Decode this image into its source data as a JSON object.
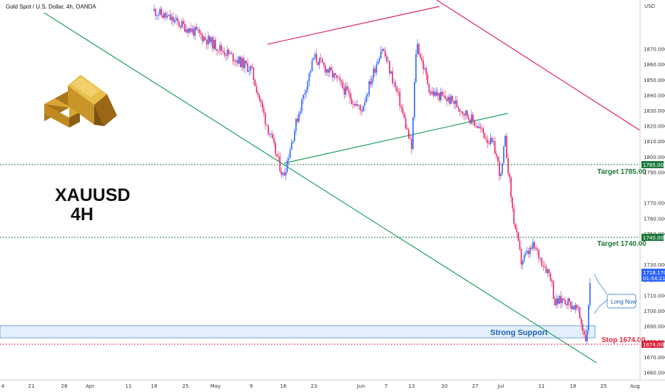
{
  "header": {
    "instrument": "Gold Spot / U.S. Dollar, 4h, OANDA"
  },
  "annotations": {
    "symbol": "XAUUSD",
    "timeframe": "4H",
    "target_upper": "Target 1785.00",
    "target_lower": "Target 1740.00",
    "stop": "Stop 1674.00",
    "support_zone": "Strong Support",
    "callout": "Long Now"
  },
  "price_scale": {
    "currency": "USD",
    "ticks": [
      "1870.000",
      "1860.000",
      "1850.000",
      "1840.000",
      "1830.000",
      "1820.000",
      "1810.000",
      "1800.000",
      "1790.000",
      "1770.000",
      "1760.000",
      "1750.000",
      "1730.000",
      "1720.000",
      "1710.000",
      "1700.000",
      "1690.000",
      "1680.000",
      "1670.000",
      "1660.000"
    ],
    "tags": {
      "target_upper": "1785.000",
      "target_lower": "1740.000",
      "stop": "1674.000",
      "last_price": "1718.170",
      "countdown": "01:54:21"
    }
  },
  "time_axis": {
    "labels": [
      "4",
      "21",
      "28",
      "Apr",
      "11",
      "18",
      "25",
      "May",
      "9",
      "16",
      "23",
      "Jun",
      "7",
      "13",
      "20",
      "27",
      "Jul",
      "11",
      "18",
      "25",
      "Aug"
    ]
  },
  "colors": {
    "up": "#2962ff",
    "down": "#e91e63",
    "green_line": "#1fa060",
    "red_line": "#e0245e",
    "target_green": "#1b7a3a",
    "stop_red": "#e0223c",
    "support_fill": "#e3f0fb",
    "support_border": "#4a90d9",
    "gold": "#c8961e"
  },
  "chart_data": {
    "type": "candlestick",
    "title": "Gold Spot / U.S. Dollar, 4h, OANDA",
    "xlabel": "",
    "ylabel": "USD",
    "ylim": [
      1653,
      1895
    ],
    "price_path": [
      {
        "date": "Apr 18",
        "price": 1895
      },
      {
        "date": "Apr 28",
        "price": 1880
      },
      {
        "date": "May 4",
        "price": 1868
      },
      {
        "date": "May 9",
        "price": 1857
      },
      {
        "date": "May 12",
        "price": 1825
      },
      {
        "date": "May 16",
        "price": 1787
      },
      {
        "date": "May 19",
        "price": 1823
      },
      {
        "date": "May 23",
        "price": 1865
      },
      {
        "date": "May 27",
        "price": 1852
      },
      {
        "date": "Jun 1",
        "price": 1830
      },
      {
        "date": "Jun 6",
        "price": 1872
      },
      {
        "date": "Jun 10",
        "price": 1838
      },
      {
        "date": "Jun 13",
        "price": 1805
      },
      {
        "date": "Jun 14",
        "price": 1875
      },
      {
        "date": "Jun 17",
        "price": 1842
      },
      {
        "date": "Jun 22",
        "price": 1836
      },
      {
        "date": "Jun 27",
        "price": 1822
      },
      {
        "date": "Jun 30",
        "price": 1806
      },
      {
        "date": "Jul 1",
        "price": 1786
      },
      {
        "date": "Jul 2",
        "price": 1812
      },
      {
        "date": "Jul 4",
        "price": 1762
      },
      {
        "date": "Jul 6",
        "price": 1732
      },
      {
        "date": "Jul 9",
        "price": 1742
      },
      {
        "date": "Jul 13",
        "price": 1723
      },
      {
        "date": "Jul 14",
        "price": 1705
      },
      {
        "date": "Jul 16",
        "price": 1708
      },
      {
        "date": "Jul 19",
        "price": 1701
      },
      {
        "date": "Jul 21",
        "price": 1681
      },
      {
        "date": "Jul 22",
        "price": 1718.17
      }
    ],
    "horizontal_levels": [
      {
        "name": "Target 1785.00",
        "value": 1785
      },
      {
        "name": "Target 1740.00",
        "value": 1740
      },
      {
        "name": "Stop 1674.00",
        "value": 1674
      }
    ],
    "support_zone": {
      "name": "Strong Support",
      "from": 1677,
      "to": 1685
    },
    "trendlines": [
      {
        "color": "green",
        "from": {
          "date": "Mar 4",
          "price": 1895
        },
        "to": {
          "date": "Jul 24",
          "price": 1665
        }
      },
      {
        "color": "green",
        "from": {
          "date": "May 16",
          "price": 1785
        },
        "to": {
          "date": "Jul 2",
          "price": 1816
        }
      },
      {
        "color": "red",
        "from": {
          "date": "May 12",
          "price": 1860
        },
        "to": {
          "date": "Jun 19",
          "price": 1880
        }
      },
      {
        "color": "red",
        "from": {
          "date": "Jun 19",
          "price": 1895
        },
        "to": {
          "date": "Aug 1",
          "price": 1807
        }
      }
    ]
  }
}
